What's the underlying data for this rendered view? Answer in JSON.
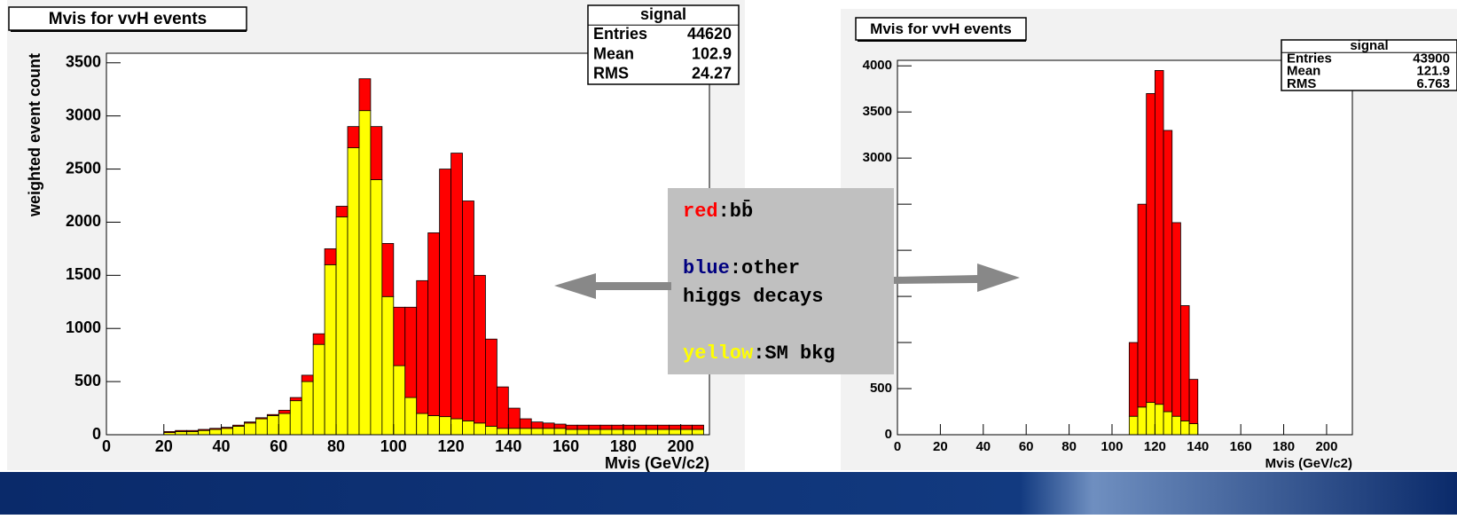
{
  "chart_data": [
    {
      "type": "histogram",
      "title": "Mvis for vvH events",
      "x_label": "Mvis (GeV/c2)",
      "y_label": "weighted event count",
      "bins": [
        0,
        4,
        8,
        12,
        16,
        20,
        24,
        28,
        32,
        36,
        40,
        44,
        48,
        52,
        56,
        60,
        64,
        68,
        72,
        76,
        80,
        84,
        88,
        92,
        96,
        100,
        104,
        108,
        112,
        116,
        120,
        124,
        128,
        132,
        136,
        140,
        144,
        148,
        152,
        156,
        160,
        164,
        168,
        172,
        176,
        180,
        184,
        188,
        192,
        196,
        200,
        204,
        208
      ],
      "series": [
        {
          "name": "SM bkg",
          "color": "#ffff00",
          "values": [
            0,
            0,
            0,
            0,
            0,
            20,
            30,
            30,
            40,
            50,
            60,
            80,
            110,
            150,
            180,
            200,
            320,
            500,
            850,
            1600,
            2050,
            2700,
            3050,
            2400,
            1300,
            650,
            350,
            200,
            180,
            170,
            150,
            130,
            110,
            80,
            60,
            60,
            60,
            60,
            60,
            60,
            50,
            50,
            50,
            50,
            50,
            50,
            50,
            50,
            50,
            50,
            50,
            50
          ]
        },
        {
          "name": "bb",
          "color": "#ff0000",
          "values": [
            0,
            0,
            0,
            0,
            0,
            10,
            10,
            10,
            10,
            10,
            10,
            10,
            10,
            10,
            10,
            30,
            30,
            60,
            100,
            150,
            100,
            200,
            300,
            500,
            500,
            550,
            850,
            1250,
            1720,
            2330,
            2500,
            2070,
            1390,
            820,
            390,
            190,
            90,
            60,
            50,
            40,
            40,
            40,
            40,
            40,
            40,
            40,
            40,
            40,
            40,
            40,
            40,
            40
          ]
        }
      ],
      "xlim": [
        0,
        210
      ],
      "xticks": [
        0,
        20,
        40,
        60,
        80,
        100,
        120,
        140,
        160,
        180,
        200
      ],
      "ylim": [
        0,
        3590
      ],
      "yticks": [
        0,
        500,
        1000,
        1500,
        2000,
        2500,
        3000,
        3500
      ],
      "stats": {
        "title": "signal",
        "rows": [
          [
            "Entries",
            44620
          ],
          [
            "Mean",
            102.9
          ],
          [
            "RMS",
            24.27
          ]
        ]
      }
    },
    {
      "type": "histogram",
      "title": "Mvis for vvH events",
      "x_label": "Mvis (GeV/c2)",
      "y_label": "weighted event count",
      "bins": [
        108,
        112,
        116,
        120,
        124,
        128,
        132,
        136,
        140
      ],
      "series": [
        {
          "name": "SM bkg",
          "color": "#ffff00",
          "values": [
            200,
            300,
            350,
            330,
            250,
            200,
            150,
            120
          ]
        },
        {
          "name": "bb",
          "color": "#ff0000",
          "values": [
            800,
            2200,
            3350,
            3620,
            3050,
            2100,
            1250,
            480
          ]
        }
      ],
      "xlim": [
        0,
        212
      ],
      "xticks": [
        0,
        20,
        40,
        60,
        80,
        100,
        120,
        140,
        160,
        180,
        200
      ],
      "ylim": [
        0,
        4060
      ],
      "yticks": [
        0,
        500,
        1000,
        1500,
        2000,
        2500,
        3000,
        3500,
        4000
      ],
      "stats": {
        "title": "signal",
        "rows": [
          [
            "Entries",
            43900
          ],
          [
            "Mean",
            121.9
          ],
          [
            "RMS",
            6.763
          ]
        ]
      }
    }
  ],
  "legend": [
    {
      "word": "red",
      "color": "#ff0000",
      "text": ":bb̄"
    },
    {
      "word": "blue",
      "color": "#000080",
      "text": ":other"
    },
    {
      "word": "",
      "color": "#000000",
      "text": "higgs decays"
    },
    {
      "word": "yellow",
      "color": "#ffff00",
      "text": ":SM bkg"
    }
  ]
}
